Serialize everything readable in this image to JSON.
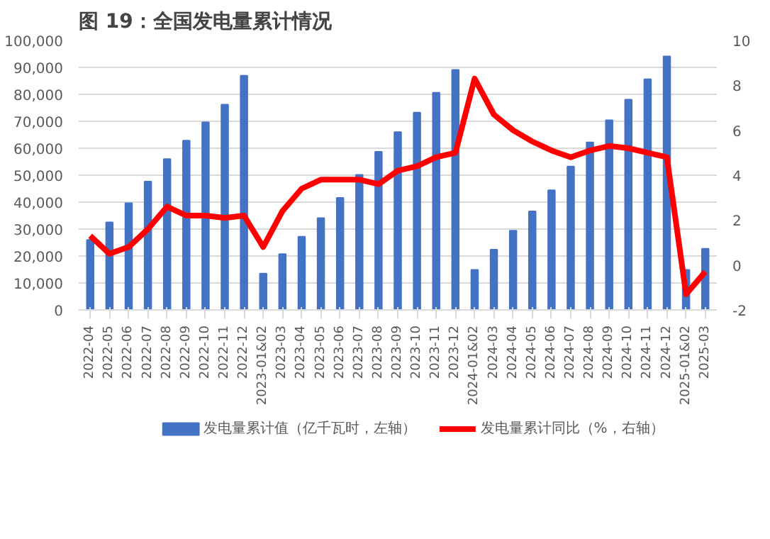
{
  "chart_data": {
    "type": "bar",
    "title": "图 19：全国发电量累计情况",
    "categories": [
      "2022-04",
      "2022-05",
      "2022-06",
      "2022-07",
      "2022-08",
      "2022-09",
      "2022-10",
      "2022-11",
      "2022-12",
      "2023-01&02",
      "2023-03",
      "2023-04",
      "2023-05",
      "2023-06",
      "2023-07",
      "2023-08",
      "2023-09",
      "2023-10",
      "2023-11",
      "2023-12",
      "2024-01&02",
      "2024-03",
      "2024-04",
      "2024-05",
      "2024-06",
      "2024-07",
      "2024-08",
      "2024-09",
      "2024-10",
      "2024-11",
      "2024-12",
      "2025-01&02",
      "2025-03"
    ],
    "series": [
      {
        "name": "发电量累计值（亿千瓦时，左轴）",
        "type": "bar",
        "color": "#4472c4",
        "values": [
          26000,
          32500,
          39600,
          47600,
          56000,
          62800,
          69600,
          76200,
          86900,
          13500,
          20700,
          27200,
          34100,
          41600,
          50100,
          58700,
          66000,
          73200,
          80600,
          89100,
          14900,
          22400,
          29400,
          36600,
          44400,
          53200,
          62200,
          70400,
          78000,
          85600,
          94100,
          14900,
          22700
        ]
      },
      {
        "name": "发电量累计同比（%，右轴）",
        "type": "line",
        "axis": "y2",
        "color": "#ff0000",
        "values": [
          1.3,
          0.5,
          0.8,
          1.6,
          2.6,
          2.2,
          2.2,
          2.1,
          2.2,
          0.8,
          2.4,
          3.4,
          3.8,
          3.8,
          3.8,
          3.6,
          4.2,
          4.4,
          4.8,
          5.0,
          8.3,
          6.7,
          6.0,
          5.5,
          5.1,
          4.8,
          5.1,
          5.3,
          5.2,
          5.0,
          4.8,
          -1.3,
          -0.3
        ]
      }
    ],
    "ylim": [
      0,
      100000
    ],
    "yticks": [
      0,
      {
        "value": 10000,
        "label": "10,000"
      },
      {
        "value": 20000,
        "label": "20,000"
      },
      {
        "value": 30000,
        "label": "30,000"
      },
      {
        "value": 40000,
        "label": "40,000"
      },
      {
        "value": 50000,
        "label": "50,000"
      },
      {
        "value": 60000,
        "label": "60,000"
      },
      {
        "value": 70000,
        "label": "70,000"
      },
      {
        "value": 80000,
        "label": "80,000"
      },
      {
        "value": 90000,
        "label": "90,000"
      },
      {
        "value": 100000,
        "label": "100,000"
      }
    ],
    "y2lim": [
      -2,
      10
    ],
    "y2ticks": [
      -2,
      0,
      2,
      4,
      6,
      8,
      10
    ],
    "grid": "y",
    "legend": "bottom",
    "marker": "none",
    "line_style": "solid"
  }
}
